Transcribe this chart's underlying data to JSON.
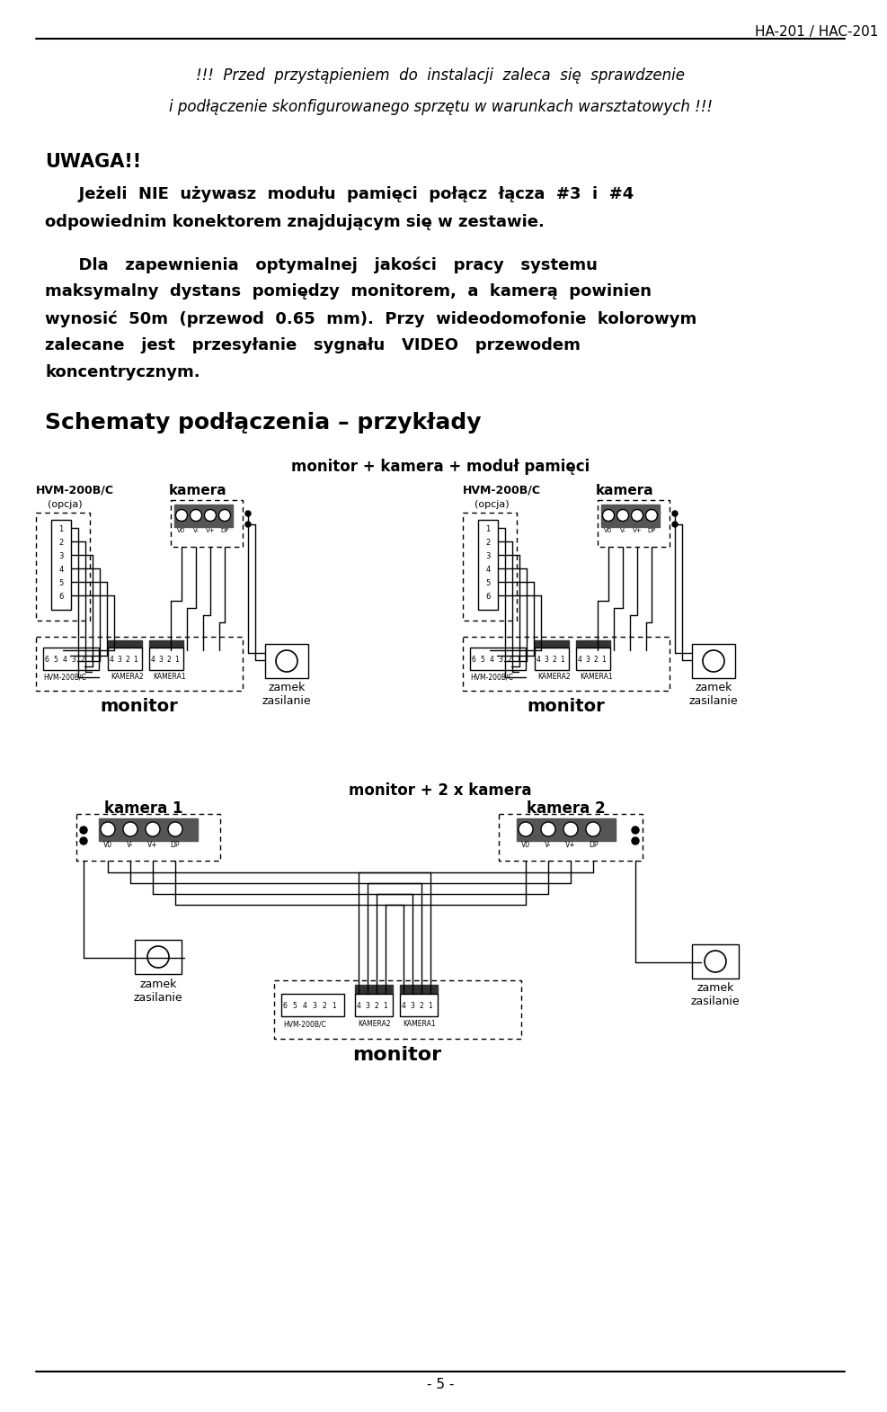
{
  "page_header": "HA-201 / HAC-201",
  "page_number": "- 5 -",
  "text_italic_line1": "!!!  Przed  przystąpieniem  do  instalacji  zaleca  się  sprawdzenie",
  "text_italic_line2": "i podłączenie skonfigurowanego sprzętu w warunkach warsztatowych !!!",
  "uwaga_title": "UWAGA!!",
  "uwaga_text_line1": "      Jeżeli  NIE  używasz  modułu  pamięci  połącz  łącza  #3  i  #4",
  "uwaga_text_line2": "odpowiednim konektorem znajdującym się w zestawie.",
  "para_line1": "      Dla   zapewnienia   optymalnej   jakości   pracy   systemu",
  "para_line2": "maksymalny  dystans  pomiędzy  monitorem,  a  kamerą  powinien",
  "para_line3": "wynosić  50m  (przewod  0.65  mm).  Przy  wideodomofonie  kolorowym",
  "para_line4": "zalecane   jest   przesyłanie   sygnału   VIDEO   przewodem",
  "para_line5": "koncentrycznym.",
  "section_title": "Schematy podłączenia – przykłady",
  "subtitle1": "monitor + kamera + moduł pamięci",
  "subtitle2": "monitor + 2 x kamera",
  "bg_color": "#ffffff",
  "text_color": "#000000"
}
